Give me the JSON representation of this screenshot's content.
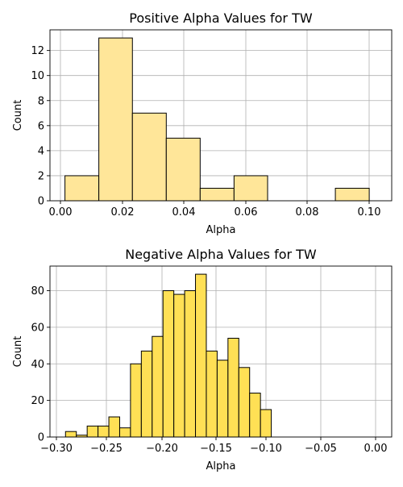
{
  "chart_data": [
    {
      "type": "bar",
      "title": "Positive Alpha Values for TW",
      "xlabel": "Alpha",
      "ylabel": "Count",
      "xlim": [
        -0.0035,
        0.1105
      ],
      "ylim": [
        0,
        13.65
      ],
      "xticks": [
        0.0,
        0.02,
        0.04,
        0.06,
        0.08,
        0.1
      ],
      "xtick_labels": [
        "0.00",
        "0.02",
        "0.04",
        "0.06",
        "0.08",
        "0.10"
      ],
      "yticks": [
        0,
        2,
        4,
        6,
        8,
        10,
        12
      ],
      "ytick_labels": [
        "0",
        "2",
        "4",
        "6",
        "8",
        "10",
        "12"
      ],
      "grid": true,
      "bar_color": "#ffe699",
      "bins": [
        {
          "x0": 0.0015,
          "x1": 0.0128,
          "count": 2
        },
        {
          "x0": 0.0128,
          "x1": 0.024,
          "count": 13
        },
        {
          "x0": 0.024,
          "x1": 0.0353,
          "count": 7
        },
        {
          "x0": 0.0353,
          "x1": 0.0466,
          "count": 5
        },
        {
          "x0": 0.0466,
          "x1": 0.0579,
          "count": 1
        },
        {
          "x0": 0.0579,
          "x1": 0.0691,
          "count": 2
        },
        {
          "x0": 0.0691,
          "x1": 0.0804,
          "count": 0
        },
        {
          "x0": 0.0804,
          "x1": 0.0917,
          "count": 0
        },
        {
          "x0": 0.0917,
          "x1": 0.103,
          "count": 1
        }
      ]
    },
    {
      "type": "bar",
      "title": "Negative Alpha Values for TW",
      "xlabel": "Alpha",
      "ylabel": "Count",
      "xlim": [
        -0.3039,
        0.0148
      ],
      "ylim": [
        0,
        93.45
      ],
      "xticks": [
        -0.3,
        -0.25,
        -0.2,
        -0.15,
        -0.1,
        -0.05,
        0.0
      ],
      "xtick_labels": [
        "−0.30",
        "−0.25",
        "−0.20",
        "−0.15",
        "−0.10",
        "−0.05",
        "0.00"
      ],
      "yticks": [
        0,
        20,
        40,
        60,
        80
      ],
      "ytick_labels": [
        "0",
        "20",
        "40",
        "60",
        "80"
      ],
      "grid": true,
      "bar_color": "#ffe055",
      "bins": [
        {
          "x0": -0.2894,
          "x1": -0.2793,
          "count": 3
        },
        {
          "x0": -0.2793,
          "x1": -0.2692,
          "count": 1
        },
        {
          "x0": -0.2692,
          "x1": -0.2591,
          "count": 6
        },
        {
          "x0": -0.2591,
          "x1": -0.249,
          "count": 6
        },
        {
          "x0": -0.249,
          "x1": -0.2389,
          "count": 11
        },
        {
          "x0": -0.2389,
          "x1": -0.2288,
          "count": 5
        },
        {
          "x0": -0.2288,
          "x1": -0.2187,
          "count": 40
        },
        {
          "x0": -0.2187,
          "x1": -0.2086,
          "count": 47
        },
        {
          "x0": -0.2086,
          "x1": -0.1985,
          "count": 55
        },
        {
          "x0": -0.1985,
          "x1": -0.1884,
          "count": 80
        },
        {
          "x0": -0.1884,
          "x1": -0.1783,
          "count": 78
        },
        {
          "x0": -0.1783,
          "x1": -0.1682,
          "count": 80
        },
        {
          "x0": -0.1682,
          "x1": -0.1581,
          "count": 89
        },
        {
          "x0": -0.1581,
          "x1": -0.148,
          "count": 47
        },
        {
          "x0": -0.148,
          "x1": -0.1379,
          "count": 42
        },
        {
          "x0": -0.1379,
          "x1": -0.1278,
          "count": 54
        },
        {
          "x0": -0.1278,
          "x1": -0.1177,
          "count": 38
        },
        {
          "x0": -0.1177,
          "x1": -0.1076,
          "count": 24
        },
        {
          "x0": -0.1076,
          "x1": -0.0975,
          "count": 15
        }
      ]
    }
  ]
}
